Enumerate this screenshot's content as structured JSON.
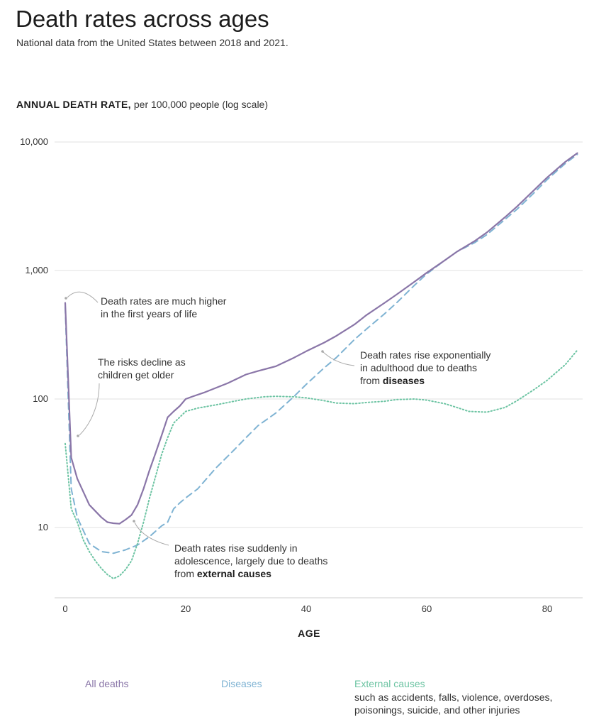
{
  "header": {
    "title": "Death rates across ages",
    "subtitle": "National data from the United States between 2018 and 2021."
  },
  "axis": {
    "ylabel_bold": "ANNUAL DEATH RATE,",
    "ylabel_rest": "per 100,000 people (log scale)",
    "xlabel": "AGE"
  },
  "colors": {
    "all_deaths": "#8a76a8",
    "diseases": "#7fb3d3",
    "external": "#6dc4a3",
    "grid": "#e2e2e2",
    "text": "#333333"
  },
  "annotations": [
    {
      "id": "infant",
      "lines": [
        "Death rates are much higher",
        "in the first years of life"
      ],
      "target": [
        0,
        600
      ]
    },
    {
      "id": "children",
      "lines": [
        "The risks decline as",
        "children get older"
      ],
      "target": [
        2,
        50
      ]
    },
    {
      "id": "adolescence",
      "lines": [
        "Death rates rise suddenly in",
        "adolescence, largely due to deaths"
      ],
      "prefix": "from ",
      "bold": "external causes",
      "target": [
        11,
        12
      ]
    },
    {
      "id": "adulthood",
      "lines": [
        "Death rates rise exponentially",
        "in adulthood due to deaths"
      ],
      "prefix": "from ",
      "bold": "diseases",
      "target": [
        42,
        330
      ]
    }
  ],
  "chart_data": {
    "type": "line",
    "title": "Death rates across ages",
    "subtitle": "National data from the United States between 2018 and 2021.",
    "xlabel": "AGE",
    "ylabel": "ANNUAL DEATH RATE, per 100,000 people (log scale)",
    "y_scale": "log",
    "xlim": [
      0,
      85
    ],
    "ylim": [
      3.5,
      10000
    ],
    "x_ticks": [
      0,
      20,
      40,
      60,
      80
    ],
    "x_tick_labels": [
      "0",
      "20",
      "40",
      "60",
      "80"
    ],
    "y_ticks": [
      10,
      100,
      1000,
      10000
    ],
    "y_tick_labels": [
      "10",
      "100",
      "1,000",
      "10,000"
    ],
    "grid": true,
    "legend_position": "bottom",
    "series": [
      {
        "name": "All deaths",
        "style": "solid",
        "x": [
          0,
          1,
          2,
          4,
          6,
          7,
          8,
          9,
          10,
          11,
          12,
          13,
          14,
          15,
          16,
          17,
          18,
          19,
          20,
          21,
          23,
          25,
          27,
          30,
          32,
          35,
          38,
          40,
          43,
          45,
          48,
          50,
          53,
          55,
          58,
          60,
          63,
          65,
          68,
          70,
          73,
          75,
          78,
          80,
          83,
          85
        ],
        "values": [
          560,
          35,
          24,
          15,
          12,
          11,
          10.8,
          10.7,
          11.5,
          12.5,
          15,
          20,
          28,
          38,
          52,
          72,
          80,
          88,
          100,
          104,
          112,
          122,
          133,
          155,
          165,
          180,
          210,
          235,
          275,
          310,
          380,
          450,
          560,
          650,
          820,
          960,
          1200,
          1400,
          1700,
          1980,
          2600,
          3150,
          4300,
          5300,
          7000,
          8200
        ]
      },
      {
        "name": "Diseases",
        "style": "dashed",
        "x": [
          0,
          1,
          2,
          4,
          6,
          8,
          10,
          12,
          14,
          16,
          17,
          18,
          19,
          20,
          22,
          25,
          28,
          30,
          32,
          35,
          38,
          40,
          43,
          45,
          48,
          50,
          53,
          55,
          58,
          60,
          63,
          65,
          68,
          70,
          73,
          75,
          78,
          80,
          83,
          85
        ],
        "values": [
          520,
          20,
          12,
          7.5,
          6.5,
          6.3,
          6.7,
          7.3,
          8.5,
          10.3,
          11,
          14,
          15.5,
          17,
          20,
          29,
          40,
          50,
          62,
          78,
          105,
          130,
          175,
          210,
          290,
          350,
          460,
          560,
          770,
          940,
          1200,
          1400,
          1650,
          1900,
          2500,
          3000,
          4100,
          5100,
          6800,
          8000
        ]
      },
      {
        "name": "External causes",
        "description": "such as accidents, falls, violence, overdoses, poisonings, suicide, and other injuries",
        "style": "dotted",
        "x": [
          0,
          1,
          2,
          3,
          4,
          5,
          6,
          7,
          8,
          9,
          10,
          11,
          12,
          13,
          14,
          15,
          16,
          17,
          18,
          20,
          22,
          25,
          28,
          30,
          33,
          35,
          38,
          40,
          43,
          45,
          48,
          50,
          53,
          55,
          58,
          60,
          63,
          65,
          67,
          70,
          73,
          75,
          78,
          80,
          83,
          85
        ],
        "values": [
          45,
          14,
          11,
          8,
          6.5,
          5.5,
          4.8,
          4.3,
          4.0,
          4.2,
          4.7,
          5.5,
          7.5,
          11,
          17,
          25,
          37,
          50,
          65,
          80,
          85,
          90,
          96,
          100,
          104,
          105,
          104,
          102,
          97,
          93,
          92,
          94,
          96,
          99,
          100,
          98,
          92,
          86,
          80,
          79,
          86,
          97,
          120,
          140,
          185,
          240
        ]
      }
    ]
  }
}
